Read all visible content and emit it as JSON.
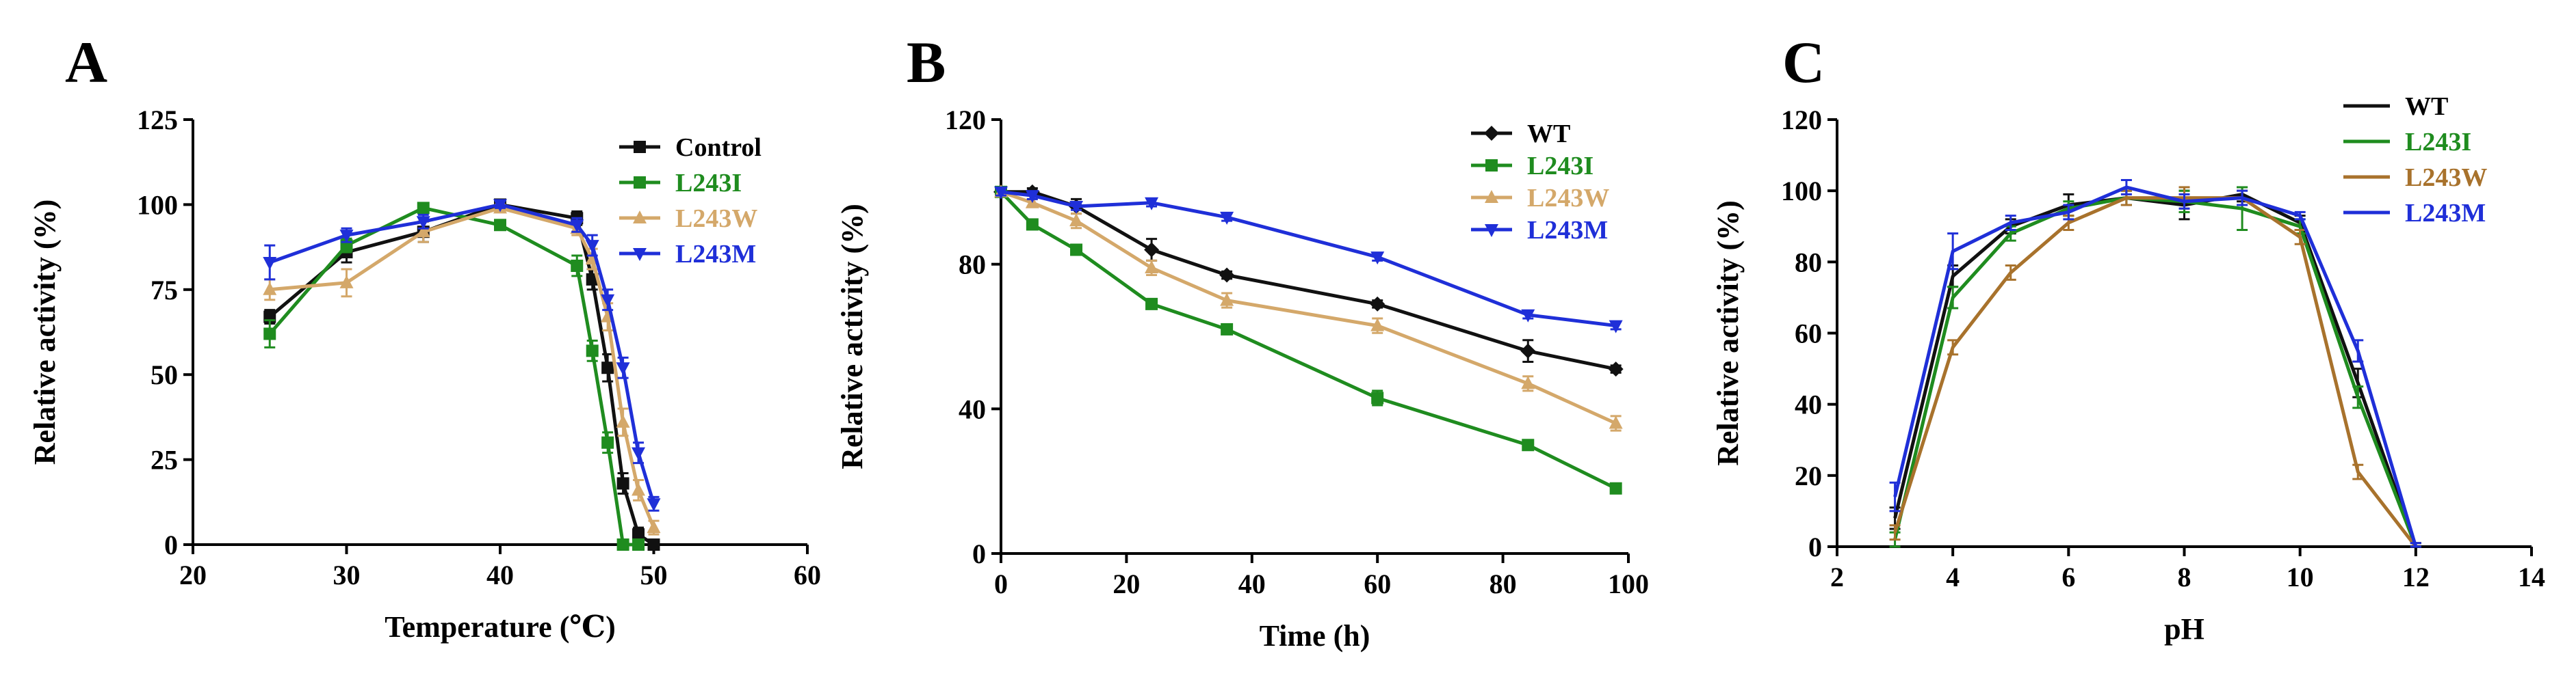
{
  "figure": {
    "colors": {
      "black": "#111111",
      "green": "#1f8c1f",
      "tan": "#d4a86a",
      "brown": "#a8722c",
      "blue": "#1f2fd8"
    }
  },
  "chart_data": [
    {
      "panel": "A",
      "type": "line",
      "title": "",
      "xlabel": "Temperature (℃)",
      "ylabel": "Relative activity (%)",
      "xlim": [
        20,
        60
      ],
      "ylim": [
        0,
        125
      ],
      "xticks": [
        20,
        30,
        40,
        50,
        60
      ],
      "yticks": [
        0,
        25,
        50,
        75,
        100,
        125
      ],
      "legend_position": "top-right",
      "legend_label_colored": true,
      "series": [
        {
          "name": "Control",
          "color": "#111111",
          "marker": "square",
          "x": [
            25,
            30,
            35,
            40,
            45,
            46,
            47,
            48,
            49,
            50
          ],
          "y": [
            67,
            86,
            92,
            100,
            96,
            78,
            52,
            18,
            3,
            0
          ],
          "err": [
            2,
            3,
            3,
            1,
            2,
            3,
            4,
            3,
            2,
            1
          ]
        },
        {
          "name": "L243I",
          "color": "#1f8c1f",
          "marker": "square",
          "x": [
            25,
            30,
            35,
            40,
            45,
            46,
            47,
            48,
            49
          ],
          "y": [
            62,
            88,
            99,
            94,
            82,
            57,
            30,
            0,
            0
          ],
          "err": [
            4,
            2,
            1,
            1,
            3,
            3,
            3,
            1,
            1
          ]
        },
        {
          "name": "L243W",
          "color": "#d4a86a",
          "marker": "triangle",
          "x": [
            25,
            30,
            35,
            40,
            45,
            46,
            47,
            48,
            49,
            50
          ],
          "y": [
            75,
            77,
            92,
            99,
            93,
            84,
            67,
            36,
            16,
            5
          ],
          "err": [
            3,
            4,
            3,
            1,
            2,
            3,
            4,
            4,
            3,
            2
          ]
        },
        {
          "name": "L243M",
          "color": "#1f2fd8",
          "marker": "triangle-down",
          "x": [
            25,
            30,
            35,
            40,
            45,
            46,
            47,
            48,
            49,
            50
          ],
          "y": [
            83,
            91,
            95,
            100,
            94,
            88,
            72,
            52,
            27,
            12
          ],
          "err": [
            5,
            2,
            2,
            1,
            2,
            3,
            3,
            3,
            3,
            2
          ]
        }
      ]
    },
    {
      "panel": "B",
      "type": "line",
      "title": "",
      "xlabel": "Time (h)",
      "ylabel": "Relative activity (%)",
      "xlim": [
        0,
        100
      ],
      "ylim": [
        0,
        120
      ],
      "xticks": [
        0,
        20,
        40,
        60,
        80,
        100
      ],
      "yticks": [
        0,
        40,
        80,
        120
      ],
      "legend_position": "top-right",
      "legend_label_colored": true,
      "series": [
        {
          "name": "WT",
          "color": "#111111",
          "marker": "diamond",
          "x": [
            0,
            5,
            12,
            24,
            36,
            60,
            84,
            98
          ],
          "y": [
            100,
            100,
            96,
            84,
            77,
            69,
            56,
            51
          ],
          "err": [
            1,
            1,
            2,
            3,
            1,
            1,
            3,
            1
          ]
        },
        {
          "name": "L243I",
          "color": "#1f8c1f",
          "marker": "square",
          "x": [
            0,
            5,
            12,
            24,
            36,
            60,
            84,
            98
          ],
          "y": [
            100,
            91,
            84,
            69,
            62,
            43,
            30,
            18
          ],
          "err": [
            1,
            1,
            1,
            1,
            1,
            2,
            1,
            1
          ]
        },
        {
          "name": "L243W",
          "color": "#d4a86a",
          "marker": "triangle",
          "x": [
            0,
            5,
            12,
            24,
            36,
            60,
            84,
            98
          ],
          "y": [
            100,
            97,
            92,
            79,
            70,
            63,
            47,
            36
          ],
          "err": [
            1,
            1,
            2,
            2,
            2,
            2,
            2,
            2
          ]
        },
        {
          "name": "L243M",
          "color": "#1f2fd8",
          "marker": "triangle-down",
          "x": [
            0,
            5,
            12,
            24,
            36,
            60,
            84,
            98
          ],
          "y": [
            100,
            99,
            96,
            97,
            93,
            82,
            66,
            63
          ],
          "err": [
            1,
            1,
            1,
            1,
            1,
            1,
            1,
            1
          ]
        }
      ]
    },
    {
      "panel": "C",
      "type": "line",
      "title": "",
      "xlabel": "pH",
      "ylabel": "Relative activity (%)",
      "xlim": [
        2,
        14
      ],
      "ylim": [
        0,
        120
      ],
      "xticks": [
        2,
        4,
        6,
        8,
        10,
        12,
        14
      ],
      "yticks": [
        0,
        20,
        40,
        60,
        80,
        100,
        120
      ],
      "legend_position": "top-right",
      "legend_label_colored": true,
      "series": [
        {
          "name": "WT",
          "color": "#111111",
          "marker": "none",
          "x": [
            3,
            4,
            5,
            6,
            7,
            8,
            9,
            10,
            11,
            12
          ],
          "y": [
            8,
            76,
            90,
            96,
            98,
            96,
            99,
            91,
            46,
            0
          ],
          "err": [
            3,
            3,
            2,
            3,
            2,
            4,
            2,
            2,
            4,
            1
          ]
        },
        {
          "name": "L243I",
          "color": "#1f8c1f",
          "marker": "none",
          "x": [
            3,
            4,
            5,
            6,
            7,
            8,
            9,
            10,
            11,
            12
          ],
          "y": [
            2,
            70,
            88,
            95,
            98,
            97,
            95,
            90,
            42,
            0
          ],
          "err": [
            2,
            3,
            2,
            2,
            2,
            3,
            6,
            2,
            3,
            1
          ]
        },
        {
          "name": "L243W",
          "color": "#a8722c",
          "marker": "none",
          "x": [
            3,
            4,
            5,
            6,
            7,
            8,
            9,
            10,
            11,
            12
          ],
          "y": [
            4,
            56,
            77,
            91,
            98,
            98,
            98,
            87,
            21,
            0
          ],
          "err": [
            2,
            2,
            2,
            2,
            2,
            3,
            2,
            2,
            2,
            1
          ]
        },
        {
          "name": "L243M",
          "color": "#1f2fd8",
          "marker": "none",
          "x": [
            3,
            4,
            5,
            6,
            7,
            8,
            9,
            10,
            11,
            12
          ],
          "y": [
            14,
            83,
            91,
            94,
            101,
            97,
            98,
            93,
            55,
            0
          ],
          "err": [
            4,
            5,
            2,
            2,
            2,
            2,
            2,
            1,
            3,
            1
          ]
        }
      ]
    }
  ]
}
